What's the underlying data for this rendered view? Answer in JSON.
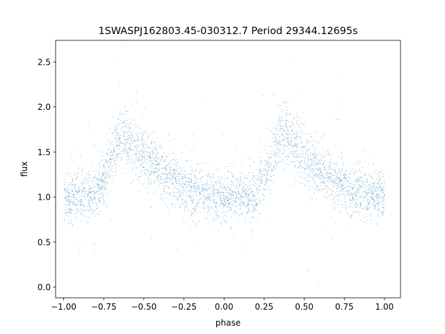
{
  "chart_data": {
    "type": "scatter",
    "title": "1SWASPJ162803.45-030312.7 Period 29344.12695s",
    "xlabel": "phase",
    "ylabel": "flux",
    "xlim": [
      -1.05,
      1.1
    ],
    "ylim": [
      -0.12,
      2.74
    ],
    "x_ticks": [
      -1.0,
      -0.75,
      -0.5,
      -0.25,
      0.0,
      0.25,
      0.5,
      0.75,
      1.0
    ],
    "x_tick_labels": [
      "−1.00",
      "−0.75",
      "−0.50",
      "−0.25",
      "0.00",
      "0.25",
      "0.50",
      "0.75",
      "1.00"
    ],
    "y_ticks": [
      0.0,
      0.5,
      1.0,
      1.5,
      2.0,
      2.5
    ],
    "y_tick_labels": [
      "0.0",
      "0.5",
      "1.0",
      "1.5",
      "2.0",
      "2.5"
    ],
    "grid": false,
    "legend": "none",
    "point_color": "#1f77b4",
    "x_range": [
      -1.0,
      1.0
    ],
    "profile": {
      "phase": [
        -1.0,
        -0.9,
        -0.8,
        -0.72,
        -0.65,
        -0.6,
        -0.5,
        -0.4,
        -0.3,
        -0.2,
        -0.1,
        0.0,
        0.1,
        0.2,
        0.28,
        0.35,
        0.4,
        0.5,
        0.6,
        0.7,
        0.8,
        0.9,
        1.0
      ],
      "median_flux": [
        1.0,
        1.0,
        1.02,
        1.35,
        1.7,
        1.65,
        1.45,
        1.3,
        1.17,
        1.07,
        1.02,
        1.0,
        1.0,
        1.02,
        1.35,
        1.7,
        1.65,
        1.45,
        1.3,
        1.17,
        1.07,
        1.02,
        1.0
      ],
      "scatter": 0.17
    }
  }
}
